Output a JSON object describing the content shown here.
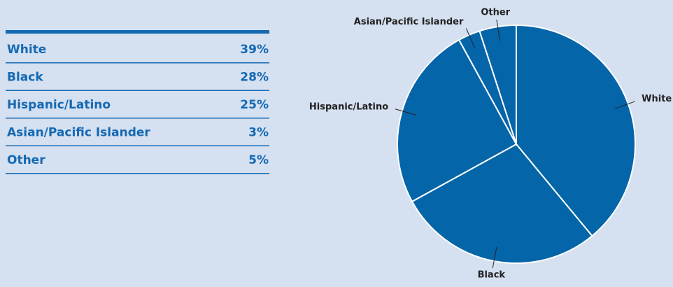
{
  "chart_data": {
    "type": "pie",
    "categories": [
      "White",
      "Black",
      "Hispanic/Latino",
      "Asian/Pacific Islander",
      "Other"
    ],
    "values": [
      39,
      28,
      25,
      3,
      5
    ],
    "value_labels": [
      "39%",
      "28%",
      "25%",
      "3%",
      "5%"
    ],
    "color": "#0565a9"
  }
}
